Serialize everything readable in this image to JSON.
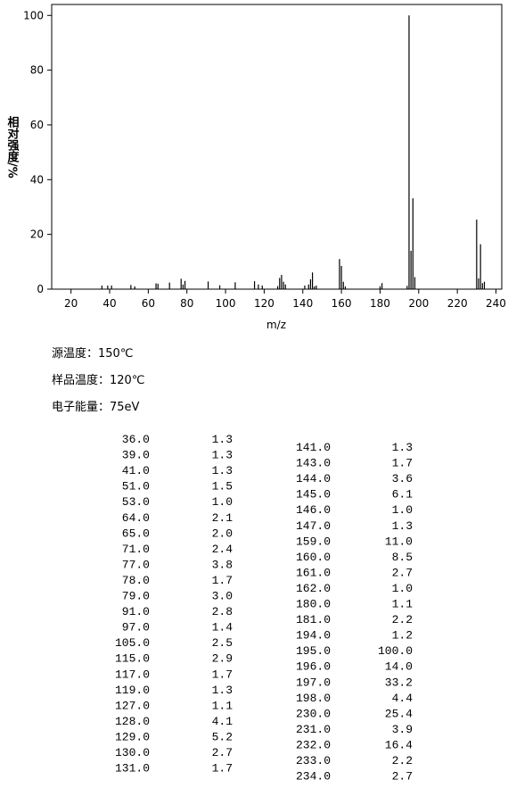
{
  "chart_data": {
    "type": "bar",
    "xlabel": "m/z",
    "ylabel": "相对强度/%",
    "xlim": [
      10,
      243
    ],
    "ylim": [
      0,
      104
    ],
    "xticks": [
      20,
      40,
      60,
      80,
      100,
      120,
      140,
      160,
      180,
      200,
      220,
      240
    ],
    "yticks": [
      0,
      20,
      40,
      60,
      80,
      100
    ],
    "color": "#000000",
    "x": [
      36,
      39,
      41,
      51,
      53,
      64,
      65,
      71,
      77,
      78,
      79,
      91,
      97,
      105,
      115,
      117,
      119,
      127,
      128,
      129,
      130,
      131,
      141,
      143,
      144,
      145,
      146,
      147,
      159,
      160,
      161,
      162,
      180,
      181,
      194,
      195,
      196,
      197,
      198,
      230,
      231,
      232,
      233,
      234
    ],
    "x_labels": [
      "36.0",
      "39.0",
      "41.0",
      "51.0",
      "53.0",
      "64.0",
      "65.0",
      "71.0",
      "77.0",
      "78.0",
      "79.0",
      "91.0",
      "97.0",
      "105.0",
      "115.0",
      "117.0",
      "119.0",
      "127.0",
      "128.0",
      "129.0",
      "130.0",
      "131.0",
      "141.0",
      "143.0",
      "144.0",
      "145.0",
      "146.0",
      "147.0",
      "159.0",
      "160.0",
      "161.0",
      "162.0",
      "180.0",
      "181.0",
      "194.0",
      "195.0",
      "196.0",
      "197.0",
      "198.0",
      "230.0",
      "231.0",
      "232.0",
      "233.0",
      "234.0"
    ],
    "values": [
      1.3,
      1.3,
      1.3,
      1.5,
      1.0,
      2.1,
      2.0,
      2.4,
      3.8,
      1.7,
      3.0,
      2.8,
      1.4,
      2.5,
      2.9,
      1.7,
      1.3,
      1.1,
      4.1,
      5.2,
      2.7,
      1.7,
      1.3,
      1.7,
      3.6,
      6.1,
      1.0,
      1.3,
      11.0,
      8.5,
      2.7,
      1.0,
      1.1,
      2.2,
      1.2,
      100.0,
      14.0,
      33.2,
      4.4,
      25.4,
      3.9,
      16.4,
      2.2,
      2.7
    ],
    "value_labels": [
      "1.3",
      "1.3",
      "1.3",
      "1.5",
      "1.0",
      "2.1",
      "2.0",
      "2.4",
      "3.8",
      "1.7",
      "3.0",
      "2.8",
      "1.4",
      "2.5",
      "2.9",
      "1.7",
      "1.3",
      "1.1",
      "4.1",
      "5.2",
      "2.7",
      "1.7",
      "1.3",
      "1.7",
      "3.6",
      "6.1",
      "1.0",
      "1.3",
      "11.0",
      "8.5",
      "2.7",
      "1.0",
      "1.1",
      "2.2",
      "1.2",
      "100.0",
      "14.0",
      "33.2",
      "4.4",
      "25.4",
      "3.9",
      "16.4",
      "2.2",
      "2.7"
    ]
  },
  "conditions": [
    "源温度：150℃",
    "样品温度：120℃",
    "电子能量：75eV"
  ]
}
